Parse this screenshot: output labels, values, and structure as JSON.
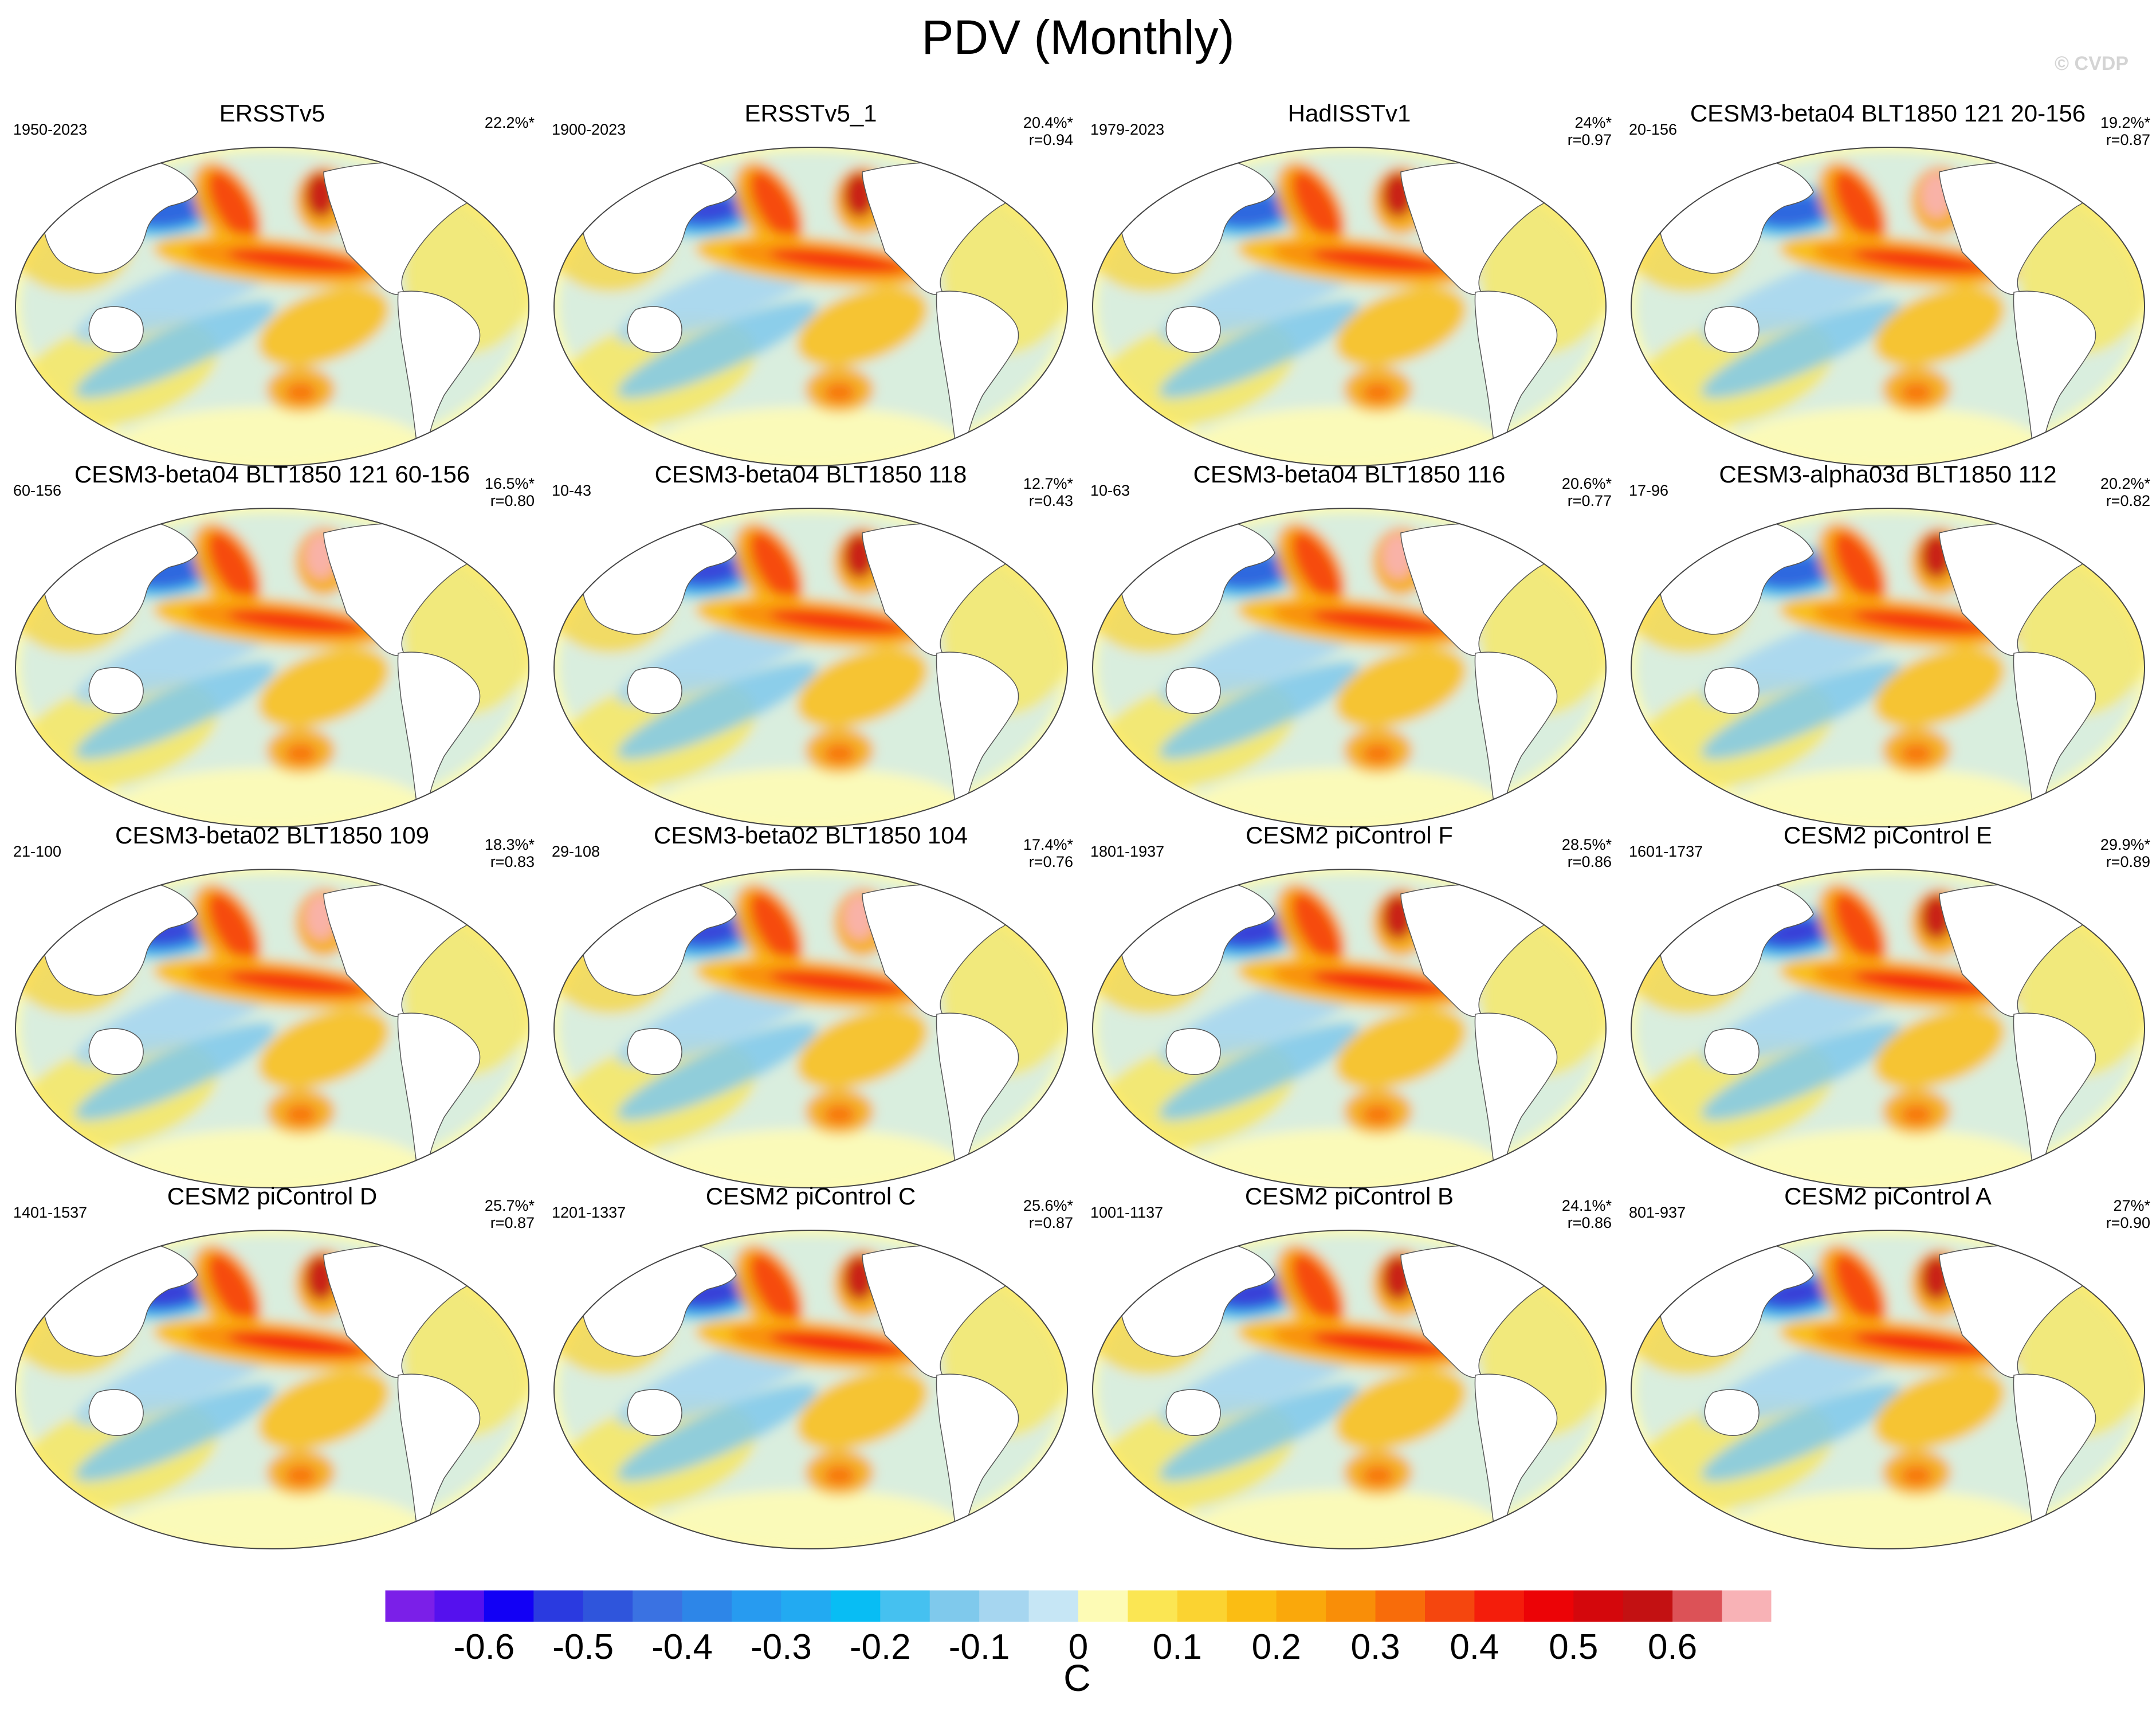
{
  "title": "PDV (Monthly)",
  "watermark": "© CVDP",
  "panels": [
    {
      "title": "ERSSTv5",
      "years": "1950-2023",
      "pct": "22.2%*",
      "corr": "",
      "variant": 0
    },
    {
      "title": "ERSSTv5_1",
      "years": "1900-2023",
      "pct": "20.4%*",
      "corr": "r=0.94",
      "variant": 1
    },
    {
      "title": "HadISSTv1",
      "years": "1979-2023",
      "pct": "24%*",
      "corr": "r=0.97",
      "variant": 2
    },
    {
      "title": "CESM3-beta04 BLT1850 121 20-156",
      "years": "20-156",
      "pct": "19.2%*",
      "corr": "r=0.87",
      "variant": 3
    },
    {
      "title": "CESM3-beta04 BLT1850 121 60-156",
      "years": "60-156",
      "pct": "16.5%*",
      "corr": "r=0.80",
      "variant": 4
    },
    {
      "title": "CESM3-beta04 BLT1850 118",
      "years": "10-43",
      "pct": "12.7%*",
      "corr": "r=0.43",
      "variant": 5
    },
    {
      "title": "CESM3-beta04 BLT1850 116",
      "years": "10-63",
      "pct": "20.6%*",
      "corr": "r=0.77",
      "variant": 6
    },
    {
      "title": "CESM3-alpha03d BLT1850 112",
      "years": "17-96",
      "pct": "20.2%*",
      "corr": "r=0.82",
      "variant": 7
    },
    {
      "title": "CESM3-beta02 BLT1850 109",
      "years": "21-100",
      "pct": "18.3%*",
      "corr": "r=0.83",
      "variant": 8
    },
    {
      "title": "CESM3-beta02 BLT1850 104",
      "years": "29-108",
      "pct": "17.4%*",
      "corr": "r=0.76",
      "variant": 9
    },
    {
      "title": "CESM2 piControl F",
      "years": "1801-1937",
      "pct": "28.5%*",
      "corr": "r=0.86",
      "variant": 10
    },
    {
      "title": "CESM2 piControl E",
      "years": "1601-1737",
      "pct": "29.9%*",
      "corr": "r=0.89",
      "variant": 11
    },
    {
      "title": "CESM2 piControl D",
      "years": "1401-1537",
      "pct": "25.7%*",
      "corr": "r=0.87",
      "variant": 12
    },
    {
      "title": "CESM2 piControl C",
      "years": "1201-1337",
      "pct": "25.6%*",
      "corr": "r=0.87",
      "variant": 13
    },
    {
      "title": "CESM2 piControl B",
      "years": "1001-1137",
      "pct": "24.1%*",
      "corr": "r=0.86",
      "variant": 14
    },
    {
      "title": "CESM2 piControl A",
      "years": "801-937",
      "pct": "27%*",
      "corr": "r=0.90",
      "variant": 15
    }
  ],
  "colorbar": {
    "colors": [
      "#7b1fe8",
      "#5511ee",
      "#1200f5",
      "#2a3ae0",
      "#2f55dc",
      "#3a72e2",
      "#2d86e8",
      "#279bf0",
      "#22aaf2",
      "#08bdf4",
      "#45c1f0",
      "#7fc9ec",
      "#a6d6f0",
      "#c6e6f5",
      "#fdfbb5",
      "#fbe653",
      "#fbd331",
      "#fbbd13",
      "#faa80b",
      "#f98e08",
      "#f86c0a",
      "#f5460e",
      "#f41d0b",
      "#ec0306",
      "#d4070c",
      "#c31112",
      "#dc5257",
      "#f8b2b6"
    ],
    "tick_labels": [
      "-0.6",
      "-0.5",
      "-0.4",
      "-0.3",
      "-0.2",
      "-0.1",
      "0",
      "0.1",
      "0.2",
      "0.3",
      "0.4",
      "0.5",
      "0.6"
    ],
    "units": "C"
  }
}
